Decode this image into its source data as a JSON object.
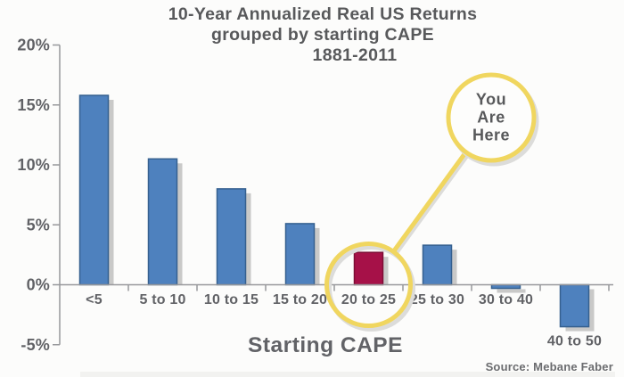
{
  "title": {
    "lines": [
      "10-Year Annualized Real US Returns",
      "grouped by starting CAPE",
      "1881-2011"
    ]
  },
  "chart_data": {
    "type": "bar",
    "title": "10-Year Annualized Real US Returns grouped by starting CAPE 1881-2011",
    "categories": [
      "<5",
      "5 to 10",
      "10 to 15",
      "15 to 20",
      "20 to 25",
      "25 to 30",
      "30 to 40",
      "40 to 50"
    ],
    "values": [
      15.8,
      10.5,
      8.0,
      5.1,
      2.7,
      3.3,
      -0.3,
      -3.5
    ],
    "value_unit": "%",
    "xlabel": "Starting CAPE",
    "ylabel": "",
    "ylim": [
      -5,
      20
    ],
    "ytick_step": 5,
    "ytick_labels": [
      "20%",
      "15%",
      "10%",
      "5%",
      "0%",
      "-5%"
    ],
    "grid": false,
    "legend": "none",
    "annotation": {
      "lines": [
        "You",
        "Are",
        "Here"
      ],
      "target_category": "20 to 25"
    },
    "source": "Source: Mebane Faber",
    "colors": {
      "bar": "#4e81be",
      "bar_border": "#35608f",
      "highlight_bar": "#a61148",
      "highlight_border": "#7c0c35",
      "bar_shadow": "#c9c9c8",
      "annotation_ring": "#f0d65f",
      "ring_shadow": "#dcdcda",
      "text_dark": "#58595b",
      "text_axis": "#616266",
      "axis_line": "#97989b"
    }
  }
}
